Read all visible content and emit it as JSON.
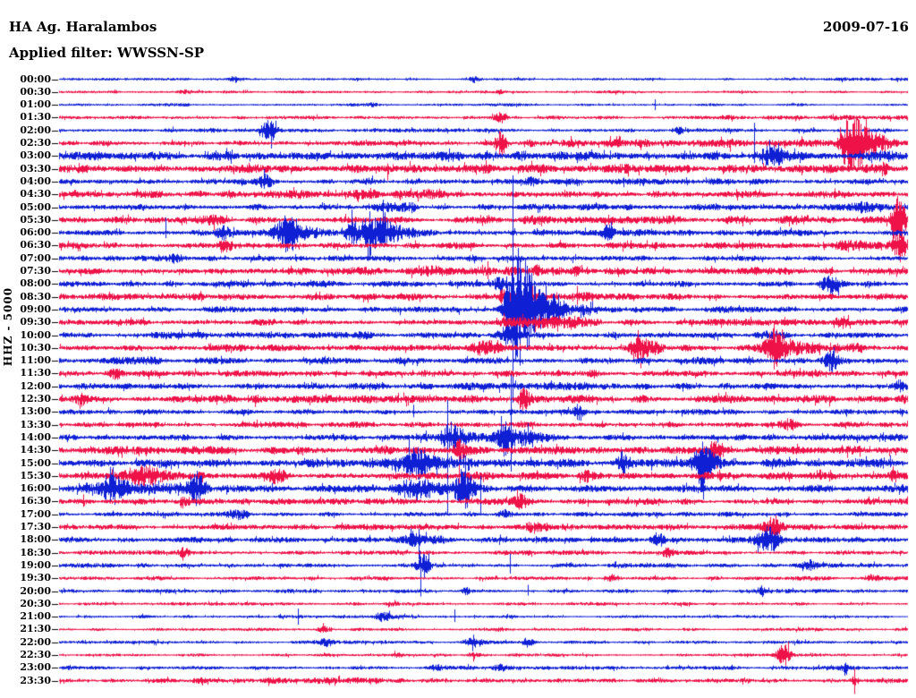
{
  "header": {
    "station": "HA Ag. Haralambos",
    "date": "2009-07-16",
    "filter_label": "Applied filter: WWSSN-SP",
    "scale_label": "HHZ - 5000"
  },
  "colors": {
    "blue_trace": "#0f1fd4",
    "red_trace": "#ee1248",
    "text": "#000000",
    "background": "#ffffff",
    "tick": "#000000"
  },
  "chart_data": {
    "type": "line",
    "subtype": "helicorder-seismogram",
    "title": "HA Ag. Haralambos",
    "date": "2009-07-16",
    "filter": "WWSSN-SP",
    "channel_scale": "HHZ - 5000",
    "minutes_per_line": 30,
    "x_range": [
      "00:00",
      "24:00"
    ],
    "legend": "alternating trace colors: XX:00 blue, XX:30 red",
    "grid": false,
    "rows": [
      {
        "t": "00:00",
        "c": "b",
        "n": 1.1,
        "e": [
          [
            "b",
            0.207,
            3.5,
            5
          ],
          [
            "b",
            0.49,
            2.5,
            4
          ]
        ],
        "g": [
          [
            0.9,
            1,
            1.8
          ]
        ]
      },
      {
        "t": "00:30",
        "c": "r",
        "n": 1.3,
        "e": [
          [
            "b",
            0.147,
            2.5,
            4
          ],
          [
            "b",
            0.52,
            2,
            4
          ]
        ]
      },
      {
        "t": "01:00",
        "c": "b",
        "n": 1.3,
        "e": [
          [
            "b",
            0.37,
            2.5,
            5
          ],
          [
            "s",
            0.7025,
            6,
            6
          ]
        ]
      },
      {
        "t": "01:30",
        "c": "r",
        "n": 1.5,
        "e": [
          [
            "b",
            0.52,
            3,
            5
          ]
        ],
        "g": [
          [
            0.78,
            1,
            2.2
          ]
        ]
      },
      {
        "t": "02:00",
        "c": "b",
        "n": 1.8,
        "e": [
          [
            "b",
            0.2468,
            7,
            6
          ],
          [
            "b",
            0.73,
            3,
            5
          ]
        ],
        "g": [
          [
            0.12,
            0.22,
            2.5
          ]
        ]
      },
      {
        "t": "02:30",
        "c": "r",
        "n": 2.2,
        "e": [
          [
            "b",
            0.5211,
            10,
            5
          ],
          [
            "d",
            0.9294,
            24,
            5,
            26
          ],
          [
            "s",
            0.9294,
            25,
            18
          ]
        ],
        "g": [
          [
            0.55,
            0.99,
            4
          ]
        ]
      },
      {
        "t": "03:00",
        "c": "b",
        "n": 3.8,
        "e": [
          [
            "b",
            0.5422,
            6,
            5
          ],
          [
            "b",
            0.8376,
            14,
            9
          ],
          [
            "s",
            0.8196,
            37,
            8
          ]
        ],
        "g": [
          [
            0.8,
            1,
            5
          ]
        ]
      },
      {
        "t": "03:30",
        "c": "r",
        "n": 3.8,
        "e": [
          [
            "s",
            0.3871,
            6,
            13
          ],
          [
            "b",
            0.9726,
            9,
            3
          ]
        ]
      },
      {
        "t": "04:00",
        "c": "b",
        "n": 2.8,
        "e": [
          [
            "b",
            0.2416,
            9,
            7
          ],
          [
            "s",
            0.2416,
            14,
            8
          ],
          [
            "b",
            0.56,
            4,
            8
          ]
        ]
      },
      {
        "t": "04:30",
        "c": "r",
        "n": 3.2,
        "g": [
          [
            0.2,
            0.45,
            4
          ]
        ]
      },
      {
        "t": "05:00",
        "c": "b",
        "n": 2.8,
        "e": [
          [
            "b",
            0.95,
            4,
            10
          ]
        ],
        "g": [
          [
            0.36,
            0.42,
            5.5
          ]
        ]
      },
      {
        "t": "05:30",
        "c": "r",
        "n": 2.8,
        "e": [
          [
            "b",
            0.1835,
            6,
            9
          ],
          [
            "d",
            0.9873,
            25,
            4,
            10
          ],
          [
            "s",
            0.9873,
            24,
            18
          ]
        ],
        "g": [
          [
            0.5,
            0.98,
            3.8
          ]
        ]
      },
      {
        "t": "06:00",
        "c": "b",
        "n": 3.0,
        "e": [
          [
            "s",
            0.1255,
            17,
            6
          ],
          [
            "b",
            0.194,
            9,
            6
          ],
          [
            "b",
            0.2732,
            15,
            9
          ],
          [
            "b",
            0.345,
            12,
            6
          ],
          [
            "d",
            0.366,
            17,
            7,
            18
          ],
          [
            "s",
            0.345,
            26,
            12
          ],
          [
            "s",
            0.366,
            24,
            28
          ],
          [
            "b",
            0.6477,
            7,
            5
          ]
        ],
        "g": [
          [
            0.25,
            0.45,
            4.5
          ]
        ]
      },
      {
        "t": "06:30",
        "c": "r",
        "n": 3.0,
        "e": [
          [
            "b",
            0.194,
            5,
            5
          ],
          [
            "b",
            0.9905,
            9,
            6
          ]
        ],
        "g": [
          [
            0.9,
            1,
            5
          ]
        ]
      },
      {
        "t": "07:00",
        "c": "b",
        "n": 2.4,
        "e": [
          [
            "b",
            0.136,
            5,
            6
          ],
          [
            "b",
            0.49,
            3.5,
            6
          ]
        ]
      },
      {
        "t": "07:30",
        "c": "r",
        "n": 2.8,
        "e": [
          [
            "s",
            0.5053,
            11,
            9
          ],
          [
            "b",
            0.5633,
            9,
            4
          ],
          [
            "b",
            0.61,
            6,
            4
          ]
        ],
        "g": [
          [
            0.27,
            0.67,
            4.5
          ]
        ]
      },
      {
        "t": "08:00",
        "c": "b",
        "n": 2.8,
        "e": [
          [
            "b",
            0.52,
            5,
            6
          ],
          [
            "b",
            0.9114,
            8,
            10
          ]
        ]
      },
      {
        "t": "08:30",
        "c": "r",
        "n": 2.8,
        "e": [
          [
            "b",
            0.5243,
            7,
            4
          ],
          [
            "s",
            0.558,
            12,
            10
          ],
          [
            "s",
            0.6108,
            12,
            9
          ]
        ],
        "g": [
          [
            0.52,
            0.63,
            4.5
          ]
        ]
      },
      {
        "t": "09:00",
        "c": "b",
        "n": 2.8,
        "e": [
          [
            "b",
            0.5264,
            14,
            3
          ],
          [
            "d",
            0.54,
            50,
            7,
            26
          ],
          [
            "s",
            0.5348,
            150,
            104
          ]
        ],
        "g": [
          [
            0.54,
            0.63,
            4
          ]
        ]
      },
      {
        "t": "09:30",
        "c": "r",
        "n": 2.8,
        "e": [
          [
            "b",
            0.922,
            4,
            5
          ]
        ],
        "g": [
          [
            0.52,
            0.64,
            5
          ]
        ]
      },
      {
        "t": "10:00",
        "c": "b",
        "n": 2.8,
        "e": [
          [
            "b",
            0.363,
            4,
            6
          ],
          [
            "b",
            0.5316,
            10,
            8
          ],
          [
            "b",
            0.8323,
            6,
            10
          ]
        ]
      },
      {
        "t": "10:30",
        "c": "r",
        "n": 2.8,
        "e": [
          [
            "b",
            0.5,
            9,
            9
          ],
          [
            "d",
            0.6825,
            15,
            5,
            12
          ],
          [
            "s",
            0.6825,
            20,
            13
          ],
          [
            "d",
            0.8428,
            24,
            6,
            14
          ],
          [
            "s",
            0.8428,
            27,
            24
          ]
        ],
        "g": [
          [
            0.8,
            0.95,
            4
          ]
        ]
      },
      {
        "t": "11:00",
        "c": "b",
        "n": 3.2,
        "e": [
          [
            "b",
            0.9114,
            7,
            6
          ]
        ]
      },
      {
        "t": "11:30",
        "c": "r",
        "n": 2.8,
        "e": [
          [
            "b",
            0.0675,
            5,
            6
          ],
          [
            "b",
            0.63,
            5,
            5
          ]
        ]
      },
      {
        "t": "12:00",
        "c": "b",
        "n": 3.2,
        "e": [
          [
            "b",
            0.37,
            4.5,
            6
          ],
          [
            "b",
            0.99,
            5,
            5
          ]
        ]
      },
      {
        "t": "12:30",
        "c": "r",
        "n": 3.6,
        "e": [
          [
            "b",
            0.025,
            5,
            6
          ],
          [
            "b",
            0.5475,
            11,
            5
          ],
          [
            "b",
            0.995,
            6,
            4
          ]
        ]
      },
      {
        "t": "13:00",
        "c": "b",
        "n": 2.4,
        "e": [
          [
            "s",
            0.4177,
            8,
            6
          ],
          [
            "b",
            0.6129,
            7,
            4
          ]
        ]
      },
      {
        "t": "13:30",
        "c": "r",
        "n": 2.4,
        "e": [
          [
            "b",
            0.86,
            4,
            6
          ]
        ]
      },
      {
        "t": "14:00",
        "c": "b",
        "n": 2.8,
        "e": [
          [
            "d",
            0.461,
            25,
            7,
            14
          ],
          [
            "s",
            0.458,
            42,
            40
          ],
          [
            "b",
            0.5295,
            19,
            6
          ],
          [
            "s",
            0.5327,
            70,
            38
          ],
          [
            "d",
            0.5506,
            13,
            6,
            16
          ]
        ],
        "g": [
          [
            0.42,
            0.6,
            4
          ]
        ]
      },
      {
        "t": "14:30",
        "c": "r",
        "n": 3.4,
        "e": [
          [
            "b",
            0.4715,
            9,
            4
          ],
          [
            "s",
            0.4715,
            13,
            46
          ],
          [
            "b",
            0.7743,
            13,
            7
          ]
        ],
        "g": [
          [
            0.38,
            0.5,
            4.5
          ]
        ]
      },
      {
        "t": "15:00",
        "c": "b",
        "n": 3.8,
        "e": [
          [
            "b",
            0.42,
            12,
            12
          ],
          [
            "b",
            0.6635,
            9,
            5
          ],
          [
            "d",
            0.7584,
            22,
            6,
            10
          ],
          [
            "s",
            0.7584,
            24,
            16
          ],
          [
            "b",
            0.975,
            7,
            6
          ]
        ],
        "g": [
          [
            0.38,
            0.46,
            6
          ]
        ]
      },
      {
        "t": "15:30",
        "c": "r",
        "n": 3.6,
        "e": [
          [
            "b",
            0.105,
            9,
            14
          ],
          [
            "b",
            0.26,
            10,
            8
          ],
          [
            "b",
            0.6213,
            6,
            5
          ],
          [
            "b",
            0.985,
            6,
            5
          ]
        ]
      },
      {
        "t": "16:00",
        "c": "b",
        "n": 3.4,
        "e": [
          [
            "b",
            0.062,
            11,
            10
          ],
          [
            "b",
            0.1624,
            15,
            7
          ],
          [
            "b",
            0.42,
            17,
            14
          ],
          [
            "b",
            0.478,
            15,
            7
          ],
          [
            "s",
            0.458,
            16,
            28
          ],
          [
            "s",
            0.4968,
            14,
            30
          ]
        ],
        "g": [
          [
            0.03,
            0.2,
            5
          ]
        ]
      },
      {
        "t": "16:30",
        "c": "r",
        "n": 2.8,
        "e": [
          [
            "s",
            0.028,
            8,
            6
          ],
          [
            "b",
            0.147,
            4,
            5
          ],
          [
            "b",
            0.5475,
            7,
            6
          ]
        ]
      },
      {
        "t": "17:00",
        "c": "b",
        "n": 2.2,
        "e": [
          [
            "b",
            0.213,
            5,
            7
          ],
          [
            "b",
            0.5243,
            4,
            5
          ]
        ]
      },
      {
        "t": "17:30",
        "c": "r",
        "n": 2.6,
        "e": [
          [
            "b",
            0.8428,
            9,
            7
          ]
        ],
        "g": [
          [
            0.55,
            0.6,
            5
          ]
        ]
      },
      {
        "t": "18:00",
        "c": "b",
        "n": 2.6,
        "e": [
          [
            "d",
            0.4177,
            12,
            6,
            12
          ],
          [
            "s",
            0.424,
            12,
            22
          ],
          [
            "b",
            0.7057,
            4,
            5
          ],
          [
            "b",
            0.8376,
            9,
            10
          ]
        ]
      },
      {
        "t": "18:30",
        "c": "r",
        "n": 2.0,
        "e": [
          [
            "b",
            0.1466,
            3,
            4
          ],
          [
            "b",
            0.7162,
            4,
            5
          ]
        ]
      },
      {
        "t": "19:00",
        "c": "b",
        "n": 2.0,
        "e": [
          [
            "b",
            0.4283,
            9,
            5
          ],
          [
            "s",
            0.4262,
            10,
            26
          ],
          [
            "s",
            0.5316,
            13,
            9
          ],
          [
            "b",
            0.885,
            3.5,
            5
          ]
        ]
      },
      {
        "t": "19:30",
        "c": "r",
        "n": 1.7,
        "e": [
          [
            "b",
            0.6509,
            4,
            5
          ],
          [
            "b",
            0.9589,
            3,
            4
          ]
        ]
      },
      {
        "t": "20:00",
        "c": "b",
        "n": 1.7,
        "e": [
          [
            "s",
            0.4262,
            8,
            6
          ],
          [
            "b",
            0.4789,
            4,
            3
          ],
          [
            "s",
            0.5527,
            7,
            5
          ],
          [
            "b",
            0.827,
            4,
            3
          ]
        ]
      },
      {
        "t": "20:30",
        "c": "r",
        "n": 1.4,
        "e": [
          [
            "b",
            0.395,
            2.5,
            5
          ],
          [
            "b",
            0.637,
            2.5,
            4
          ]
        ]
      },
      {
        "t": "21:00",
        "c": "b",
        "n": 1.4,
        "e": [
          [
            "s",
            0.2816,
            9,
            9
          ],
          [
            "b",
            0.3808,
            4,
            6
          ],
          [
            "s",
            0.4662,
            8,
            6
          ]
        ]
      },
      {
        "t": "21:30",
        "c": "r",
        "n": 1.4,
        "e": [
          [
            "b",
            0.31,
            2.5,
            6
          ],
          [
            "b",
            0.52,
            2.5,
            5
          ]
        ]
      },
      {
        "t": "22:00",
        "c": "b",
        "n": 1.5,
        "e": [
          [
            "b",
            0.3154,
            3.5,
            5
          ],
          [
            "b",
            0.49,
            3.5,
            9
          ],
          [
            "b",
            0.5527,
            3.5,
            4
          ]
        ]
      },
      {
        "t": "22:30",
        "c": "r",
        "n": 1.4,
        "e": [
          [
            "b",
            0.4,
            2.5,
            4
          ],
          [
            "b",
            0.489,
            3,
            4
          ],
          [
            "b",
            0.8544,
            12,
            5
          ]
        ]
      },
      {
        "t": "23:00",
        "c": "b",
        "n": 1.7,
        "e": [
          [
            "b",
            0.44,
            3,
            8
          ],
          [
            "b",
            0.52,
            3,
            5
          ],
          [
            "b",
            0.927,
            3,
            4
          ]
        ]
      },
      {
        "t": "23:30",
        "c": "r",
        "n": 2.0,
        "e": [
          [
            "s",
            0.9378,
            13,
            15
          ],
          [
            "b",
            0.9378,
            5,
            3
          ]
        ],
        "g": [
          [
            0.12,
            0.38,
            2.8
          ]
        ]
      }
    ]
  }
}
